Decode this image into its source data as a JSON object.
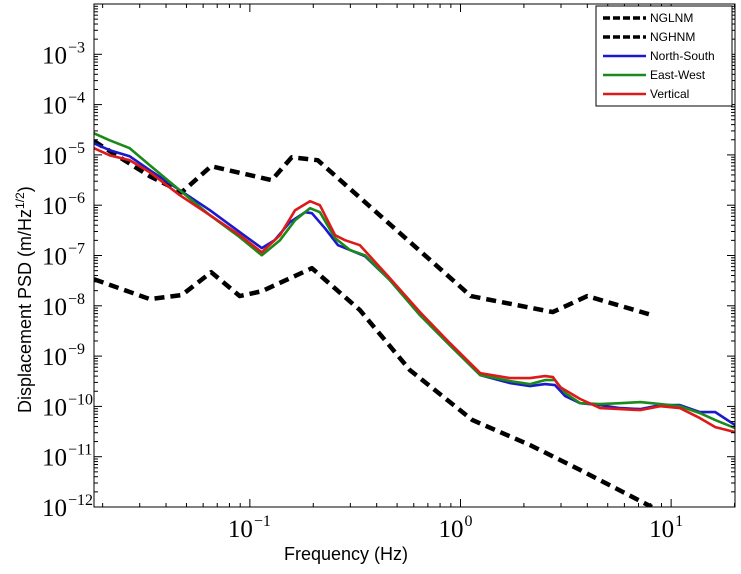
{
  "chart_data": {
    "type": "line",
    "title": "",
    "xlabel": "Frequency (Hz)",
    "ylabel_main": "Displacement PSD (m/Hz",
    "ylabel_sup": "1/2",
    "ylabel_close": ")",
    "xscale": "log",
    "yscale": "log",
    "xlim": [
      0.0182,
      20.1
    ],
    "ylim": [
      1e-12,
      0.01
    ],
    "grid": false,
    "legend_position": "top-right",
    "x_ticks": [
      {
        "value": 0.1,
        "base": "10",
        "exp": "−1"
      },
      {
        "value": 1,
        "base": "10",
        "exp": "0"
      },
      {
        "value": 10,
        "base": "10",
        "exp": "1"
      }
    ],
    "y_ticks": [
      {
        "value": 0.001,
        "base": "10",
        "exp": "−3"
      },
      {
        "value": 0.0001,
        "base": "10",
        "exp": "−4"
      },
      {
        "value": 1e-05,
        "base": "10",
        "exp": "−5"
      },
      {
        "value": 1e-06,
        "base": "10",
        "exp": "−6"
      },
      {
        "value": 1e-07,
        "base": "10",
        "exp": "−7"
      },
      {
        "value": 1e-08,
        "base": "10",
        "exp": "−8"
      },
      {
        "value": 1e-09,
        "base": "10",
        "exp": "−9"
      },
      {
        "value": 1e-10,
        "base": "10",
        "exp": "−10"
      },
      {
        "value": 1e-11,
        "base": "10",
        "exp": "−11"
      },
      {
        "value": 1e-12,
        "base": "10",
        "exp": "−12"
      }
    ],
    "series": [
      {
        "name": "NGLNM",
        "color": "#000000",
        "style": "dashed",
        "x": [
          0.0182,
          0.0335,
          0.0475,
          0.0655,
          0.0896,
          0.114,
          0.197,
          0.333,
          0.575,
          1.14,
          2.14,
          3.7,
          8.1
        ],
        "y": [
          3.38e-08,
          1.36e-08,
          1.63e-08,
          4.66e-08,
          1.56e-08,
          1.95e-08,
          5.6e-08,
          8.2e-09,
          5.26e-10,
          5.35e-11,
          1.7e-11,
          5.43e-12,
          1e-12
        ]
      },
      {
        "name": "NGHNM",
        "color": "#000000",
        "style": "dashed",
        "x": [
          0.0182,
          0.0335,
          0.0475,
          0.0655,
          0.127,
          0.158,
          0.21,
          1.12,
          2.74,
          4.0,
          8.1
        ],
        "y": [
          1.87e-05,
          3.77e-06,
          1.81e-06,
          5.95e-06,
          3.14e-06,
          8.98e-06,
          7.83e-06,
          1.56e-08,
          7.48e-09,
          1.56e-08,
          6.52e-09
        ]
      },
      {
        "name": "North-South",
        "color": "#1a1acc",
        "style": "solid",
        "x": [
          0.0182,
          0.0216,
          0.0269,
          0.0335,
          0.0465,
          0.0646,
          0.0896,
          0.114,
          0.131,
          0.155,
          0.183,
          0.197,
          0.227,
          0.262,
          0.299,
          0.352,
          0.462,
          0.642,
          0.891,
          1.24,
          1.72,
          2.14,
          2.52,
          2.81,
          3.14,
          3.7,
          4.6,
          5.73,
          7.13,
          8.87,
          11.0,
          13.7,
          16.2,
          20.1
        ],
        "y": [
          1.7e-05,
          1.24e-05,
          9.4e-06,
          4.96e-06,
          1.99e-06,
          7.95e-07,
          2.9e-07,
          1.4e-07,
          2.01e-07,
          4.59e-07,
          7.26e-07,
          6.93e-07,
          3.49e-07,
          1.6e-07,
          1.28e-07,
          9.69e-08,
          3.24e-08,
          6.52e-09,
          1.65e-09,
          4.19e-10,
          2.9e-10,
          2.53e-10,
          2.77e-10,
          2.65e-10,
          1.6e-10,
          1.16e-10,
          1.06e-10,
          9.25e-11,
          8.85e-11,
          1.06e-10,
          1.06e-10,
          7.71e-11,
          7.71e-11,
          4.26e-11
        ]
      },
      {
        "name": "East-West",
        "color": "#1a8a1a",
        "style": "solid",
        "x": [
          0.0182,
          0.0216,
          0.0269,
          0.0335,
          0.0465,
          0.0646,
          0.0896,
          0.114,
          0.139,
          0.164,
          0.193,
          0.215,
          0.254,
          0.299,
          0.352,
          0.462,
          0.642,
          0.891,
          1.24,
          1.72,
          2.14,
          2.52,
          2.81,
          3.14,
          3.7,
          4.6,
          5.73,
          7.13,
          8.87,
          11.0,
          13.7,
          16.2,
          20.1
        ],
        "y": [
          2.69e-05,
          1.95e-05,
          1.36e-05,
          6.23e-06,
          1.99e-06,
          6.33e-07,
          2.31e-07,
          1.01e-07,
          2.01e-07,
          5.04e-07,
          8.71e-07,
          7.26e-07,
          2.21e-07,
          1.28e-07,
          1.01e-07,
          3.24e-08,
          6.52e-09,
          1.65e-09,
          4.19e-10,
          3.18e-10,
          2.77e-10,
          3.33e-10,
          3.33e-10,
          1.84e-10,
          1.16e-10,
          1.11e-10,
          1.16e-10,
          1.22e-10,
          1.11e-10,
          1.01e-10,
          7.36e-11,
          5.35e-11,
          3.71e-11
        ]
      },
      {
        "name": "Vertical",
        "color": "#dd1a1a",
        "style": "solid",
        "x": [
          0.0182,
          0.0216,
          0.0269,
          0.0335,
          0.0465,
          0.0646,
          0.0896,
          0.114,
          0.139,
          0.164,
          0.193,
          0.215,
          0.254,
          0.283,
          0.333,
          0.462,
          0.642,
          0.891,
          1.24,
          1.72,
          2.14,
          2.52,
          2.75,
          2.97,
          3.7,
          4.6,
          5.73,
          7.13,
          8.87,
          11.0,
          13.7,
          16.2,
          20.1
        ],
        "y": [
          1.36e-05,
          9.84e-06,
          7.83e-06,
          4.52e-06,
          1.58e-06,
          6.33e-07,
          2.53e-07,
          1.16e-07,
          2.53e-07,
          7.95e-07,
          1.2e-06,
          1e-06,
          2.53e-07,
          2.01e-07,
          1.6e-07,
          3.54e-08,
          7.48e-09,
          1.81e-09,
          4.59e-10,
          3.65e-10,
          3.65e-10,
          4e-10,
          3.82e-10,
          2.42e-10,
          1.4e-10,
          9.25e-11,
          8.85e-11,
          8.45e-11,
          1.01e-10,
          9.25e-11,
          5.86e-11,
          3.88e-11,
          3.09e-11
        ]
      }
    ]
  }
}
